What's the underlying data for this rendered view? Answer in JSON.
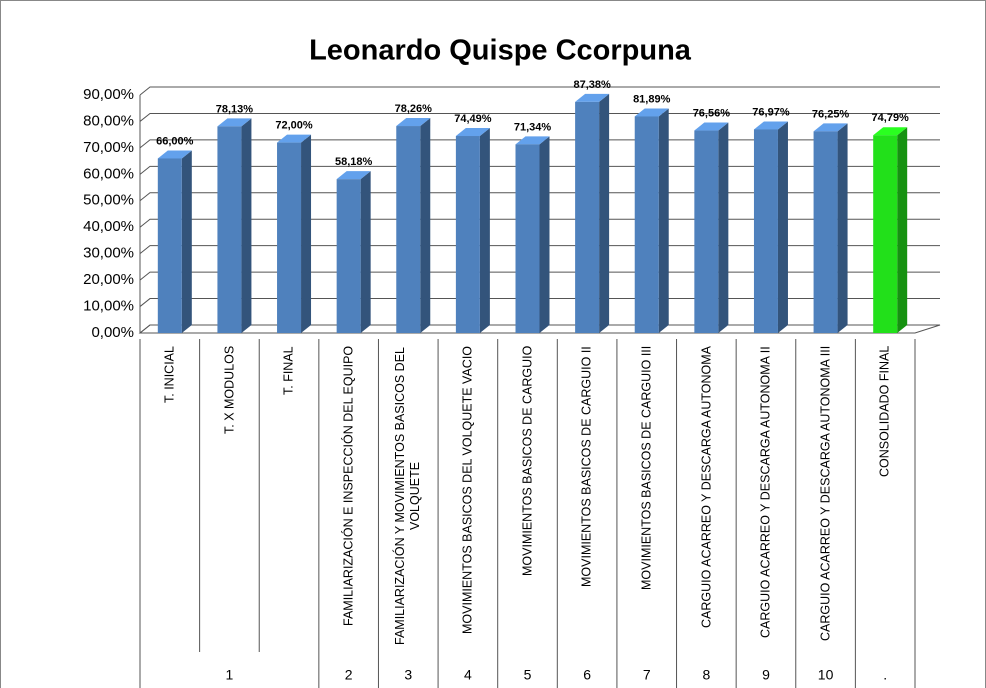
{
  "chart_data": {
    "type": "bar3d",
    "title": "Leonardo Quispe Ccorpuna",
    "categories": [
      "T. INICIAL",
      "T. X MODULOS",
      "T. FINAL",
      "FAMILIARIZACIÓN E INSPECCIÓN DEL EQUIPO",
      "FAMILIARIZACIÓN Y MOVIMIENTOS BASICOS DEL VOLQUETE",
      "MOVIMIENTOS BASICOS DEL VOLQUETE VACIO",
      "MOVIMIENTOS BASICOS DE CARGUIO",
      "MOVIMIENTOS BASICOS DE CARGUIO II",
      "MOVIMIENTOS BASICOS DE CARGUIO III",
      "CARGUIO ACARREO Y DESCARGA AUTONOMA",
      "CARGUIO ACARREO Y DESCARGA AUTONOMA II",
      "CARGUIO ACARREO Y DESCARGA AUTONOMA III",
      "CONSOLIDADO FINAL"
    ],
    "group_labels": [
      "1",
      null,
      null,
      "2",
      "3",
      "4",
      "5",
      "6",
      "7",
      "8",
      "9",
      "10",
      "."
    ],
    "values": [
      66.0,
      78.13,
      72.0,
      58.18,
      78.26,
      74.49,
      71.34,
      87.38,
      81.89,
      76.56,
      76.97,
      76.25,
      74.79
    ],
    "value_labels": [
      "66,00%",
      "78,13%",
      "72,00%",
      "58,18%",
      "78,26%",
      "74,49%",
      "71,34%",
      "87,38%",
      "81,89%",
      "76,56%",
      "76,97%",
      "76,25%",
      "74,79%"
    ],
    "colors": [
      "#4f81bd",
      "#4f81bd",
      "#4f81bd",
      "#4f81bd",
      "#4f81bd",
      "#4f81bd",
      "#4f81bd",
      "#4f81bd",
      "#4f81bd",
      "#4f81bd",
      "#4f81bd",
      "#4f81bd",
      "#22e01a"
    ],
    "ylim": [
      0,
      90
    ],
    "yticks": [
      {
        "value": 0,
        "label": "0,00%"
      },
      {
        "value": 10,
        "label": "10,00%"
      },
      {
        "value": 20,
        "label": "20,00%"
      },
      {
        "value": 30,
        "label": "30,00%"
      },
      {
        "value": 40,
        "label": "40,00%"
      },
      {
        "value": 50,
        "label": "50,00%"
      },
      {
        "value": 60,
        "label": "60,00%"
      },
      {
        "value": 70,
        "label": "70,00%"
      },
      {
        "value": 80,
        "label": "80,00%"
      },
      {
        "value": 90,
        "label": "90,00%"
      }
    ],
    "grid": true
  }
}
